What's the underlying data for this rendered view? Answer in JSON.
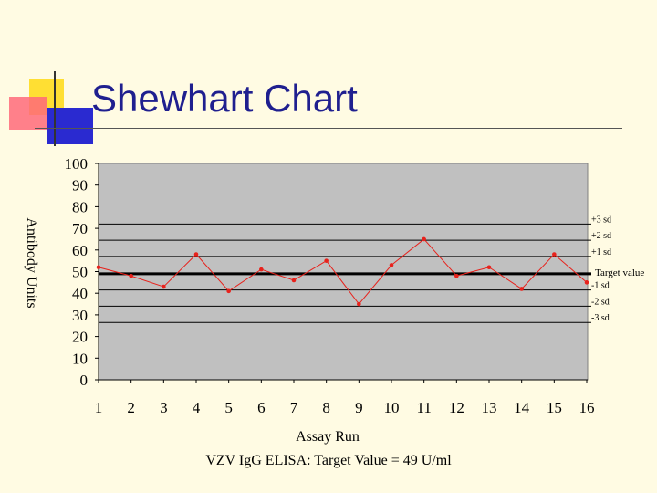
{
  "slide": {
    "title": "Shewhart Chart",
    "caption": "VZV IgG ELISA: Target Value = 49 U/ml"
  },
  "colors": {
    "background": "#fffbe3",
    "title": "#1f1f8f",
    "plot_area": "#c0c0c0",
    "series": "#e8221c",
    "target_line": "#000000",
    "sd_lines": "#000000"
  },
  "chart_data": {
    "type": "line",
    "xlabel": "Assay Run",
    "ylabel": "Antibody Units",
    "ylim": [
      0,
      100
    ],
    "yticks": [
      0,
      10,
      20,
      30,
      40,
      50,
      60,
      70,
      80,
      90,
      100
    ],
    "x": [
      1,
      2,
      3,
      4,
      5,
      6,
      7,
      8,
      9,
      10,
      11,
      12,
      13,
      14,
      15,
      16
    ],
    "series": [
      {
        "values": [
          52,
          48,
          43,
          58,
          41,
          51,
          46,
          55,
          35,
          53,
          65,
          48,
          52,
          42,
          58,
          45
        ]
      }
    ],
    "reference_lines": [
      {
        "label": "+3 sd",
        "value": 72
      },
      {
        "label": "+2 sd",
        "value": 64.5
      },
      {
        "label": "+1 sd",
        "value": 57
      },
      {
        "label": "Target value",
        "value": 49
      },
      {
        "label": "-1 sd",
        "value": 41.5
      },
      {
        "label": "-2 sd",
        "value": 34
      },
      {
        "label": "-3 sd",
        "value": 26.5
      }
    ],
    "grid": false
  }
}
